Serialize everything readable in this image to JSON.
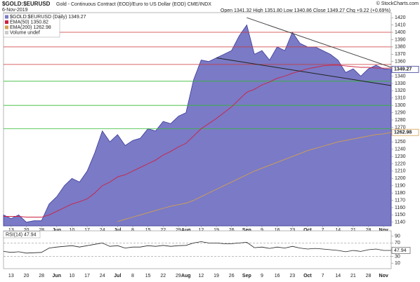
{
  "header": {
    "symbol": "$GOLD:$EURUSD",
    "title": "Gold - Continuous Contract (EOD)/Euro to US Dollar (EOD) CME/INDX",
    "date": "6-Nov-2019",
    "quote": "Open 1341.32 High 1351.80 Low 1340.86 Close 1349.27 Chg +9.22 (+0.69%)",
    "credit": "© StockCharts.com"
  },
  "chart_data": [
    {
      "type": "area",
      "categories": [
        null,
        "13",
        null,
        "20",
        null,
        "28",
        null,
        "Jun",
        null,
        "10",
        null,
        "17",
        null,
        "24",
        null,
        "Jul",
        null,
        "8",
        null,
        "15",
        null,
        "22",
        null,
        "29",
        "Aug",
        null,
        "12",
        null,
        "19",
        null,
        "26",
        null,
        "Sep",
        null,
        "9",
        null,
        "16",
        null,
        "23",
        null,
        "Oct",
        null,
        "7",
        null,
        "14",
        null,
        "21",
        null,
        "28",
        null,
        "Nov",
        null
      ],
      "series": [
        {
          "name": "$GOLD:$EURUSD (Daily) 1349.27",
          "color": "#3a3a99",
          "fill": "#7a7ac6",
          "values": [
            1150,
            1145,
            1150,
            1140,
            1142,
            1142,
            1165,
            1175,
            1190,
            1200,
            1195,
            1210,
            1235,
            1265,
            1250,
            1260,
            1245,
            1252,
            1255,
            1268,
            1265,
            1278,
            1275,
            1285,
            1290,
            1335,
            1362,
            1360,
            1365,
            1370,
            1375,
            1395,
            1410,
            1370,
            1375,
            1362,
            1380,
            1375,
            1400,
            1385,
            1380,
            1380,
            1375,
            1370,
            1362,
            1345,
            1350,
            1340,
            1350,
            1355,
            1350,
            1349.27
          ]
        },
        {
          "name": "EMA(50) 1350.82",
          "color": "#cc2244",
          "values": [
            1148,
            1148,
            1148,
            1147,
            1147,
            1147,
            1150,
            1155,
            1160,
            1165,
            1168,
            1172,
            1180,
            1190,
            1195,
            1202,
            1205,
            1210,
            1215,
            1220,
            1225,
            1232,
            1237,
            1243,
            1248,
            1258,
            1268,
            1275,
            1282,
            1290,
            1298,
            1308,
            1318,
            1322,
            1328,
            1332,
            1337,
            1340,
            1344,
            1347,
            1350,
            1352,
            1354,
            1355,
            1355,
            1354,
            1353,
            1352,
            1352,
            1351,
            1351,
            1350.82
          ]
        },
        {
          "name": "EMA(200) 1262.98",
          "color": "#d4a050",
          "values": [
            null,
            null,
            null,
            null,
            null,
            null,
            null,
            null,
            null,
            null,
            null,
            null,
            null,
            null,
            null,
            1141,
            1144,
            1147,
            1150,
            1153,
            1156,
            1159,
            1162,
            1164,
            1166,
            1170,
            1175,
            1180,
            1185,
            1190,
            1195,
            1200,
            1205,
            1210,
            1214,
            1218,
            1222,
            1226,
            1230,
            1234,
            1238,
            1241,
            1244,
            1247,
            1250,
            1252,
            1254,
            1256,
            1258,
            1260,
            1261,
            1262.98
          ]
        }
      ],
      "legend_extra": "Volume undef",
      "ylim": [
        1135,
        1425
      ],
      "yticks": [
        1140,
        1150,
        1160,
        1170,
        1180,
        1190,
        1200,
        1210,
        1220,
        1230,
        1240,
        1250,
        1260,
        1270,
        1280,
        1290,
        1300,
        1310,
        1320,
        1330,
        1340,
        1350,
        1360,
        1370,
        1380,
        1390,
        1400,
        1410,
        1420
      ],
      "hlines": [
        {
          "value": 1400,
          "color": "#cc3333"
        },
        {
          "value": 1380,
          "color": "#cc3333"
        },
        {
          "value": 1356,
          "color": "#cc3333"
        },
        {
          "value": 1333,
          "color": "#33bb33"
        },
        {
          "value": 1300,
          "color": "#33bb33"
        },
        {
          "value": 1268,
          "color": "#33bb33"
        }
      ],
      "trendlines": [
        {
          "from": "Sep",
          "values": [
            1420,
            1352
          ],
          "color": "#444"
        },
        {
          "from": "19",
          "values": [
            1365,
            1327
          ],
          "color": "#222"
        }
      ]
    },
    {
      "type": "line",
      "title": "RSI(14) 47.94",
      "color": "#222",
      "values": [
        45,
        42,
        44,
        40,
        41,
        42,
        55,
        58,
        60,
        62,
        58,
        62,
        66,
        70,
        60,
        62,
        55,
        58,
        58,
        62,
        60,
        63,
        60,
        62,
        63,
        70,
        74,
        70,
        70,
        68,
        68,
        70,
        72,
        56,
        58,
        54,
        58,
        55,
        60,
        55,
        52,
        54,
        52,
        50,
        48,
        44,
        48,
        45,
        50,
        52,
        48,
        47.94
      ],
      "ylim": [
        0,
        100
      ],
      "yticks": [
        10,
        30,
        50,
        70,
        90
      ],
      "hlines": [
        30,
        70
      ]
    }
  ]
}
